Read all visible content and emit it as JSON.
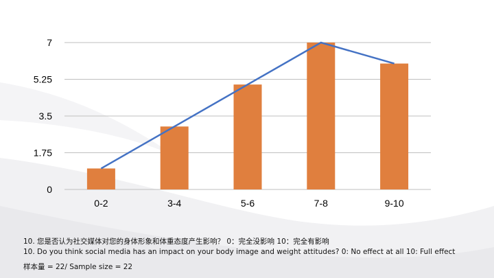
{
  "chart_data": {
    "type": "bar",
    "categories": [
      "0-2",
      "3-4",
      "5-6",
      "7-8",
      "9-10"
    ],
    "values": [
      1,
      3,
      5,
      7,
      6
    ],
    "line_overlay": {
      "points": [
        [
          0,
          1
        ],
        [
          3,
          7
        ],
        [
          4,
          6
        ]
      ],
      "color": "#4472c4"
    },
    "ylim": [
      0,
      7
    ],
    "yticks": [
      0,
      1.75,
      3.5,
      5.25,
      7
    ],
    "ytick_labels": [
      "0",
      "1.75",
      "3.5",
      "5.25",
      "7"
    ],
    "grid": true,
    "bar_color": "#e07f3e",
    "grid_color": "#bfbfbf"
  },
  "captions": {
    "question_zh": "10. 您是否认为社交媒体对您的身体形象和体重态度产生影响？ 0：完全没影响 10：完全有影响",
    "question_en": "10. Do you think social media has an impact on your body image and weight attitudes? 0: No effect at all 10: Full effect",
    "sample_size": "样本量 = 22/ Sample size = 22"
  }
}
